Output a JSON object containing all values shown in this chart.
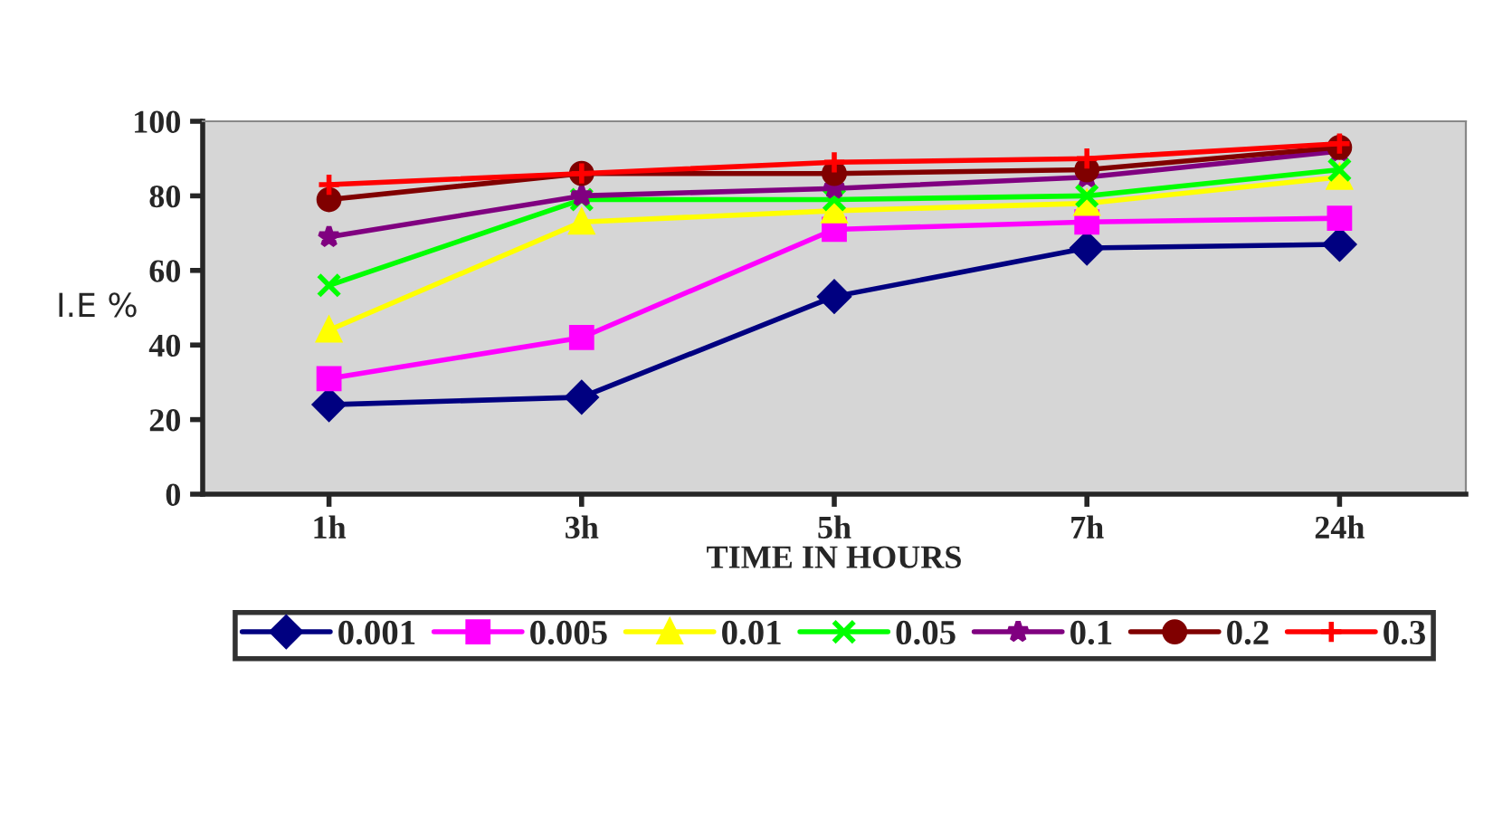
{
  "chart_data": {
    "type": "line",
    "xlabel": "TIME IN HOURS",
    "ylabel": "I.E %",
    "categories": [
      "1h",
      "3h",
      "5h",
      "7h",
      "24h"
    ],
    "ylim": [
      0,
      100
    ],
    "yticks": [
      0,
      20,
      40,
      60,
      80,
      100
    ],
    "grid": false,
    "legend": "bottom",
    "series": [
      {
        "name": "0.001",
        "color": "#000080",
        "marker": "diamond",
        "values": [
          24,
          26,
          53,
          66,
          67
        ]
      },
      {
        "name": "0.005",
        "color": "#ff00ff",
        "marker": "square",
        "values": [
          31,
          42,
          71,
          73,
          74
        ]
      },
      {
        "name": "0.01",
        "color": "#ffff00",
        "marker": "triangle",
        "values": [
          44,
          73,
          76,
          78,
          85
        ]
      },
      {
        "name": "0.05",
        "color": "#00ff00",
        "marker": "cross",
        "values": [
          56,
          79,
          79,
          80,
          87
        ]
      },
      {
        "name": "0.1",
        "color": "#800080",
        "marker": "star",
        "values": [
          69,
          80,
          82,
          85,
          92
        ]
      },
      {
        "name": "0.2",
        "color": "#800000",
        "marker": "circle",
        "values": [
          79,
          86,
          86,
          87,
          93
        ]
      },
      {
        "name": "0.3",
        "color": "#ff0000",
        "marker": "cross",
        "values": [
          83,
          86,
          89,
          90,
          94
        ]
      }
    ]
  }
}
